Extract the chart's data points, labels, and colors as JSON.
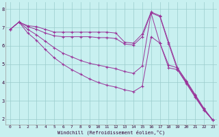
{
  "xlabel": "Windchill (Refroidissement éolien,°C)",
  "background_color": "#c8f0f0",
  "line_color": "#993399",
  "xlim": [
    -0.5,
    23.5
  ],
  "ylim": [
    1.7,
    8.4
  ],
  "yticks": [
    2,
    3,
    4,
    5,
    6,
    7,
    8
  ],
  "xticks": [
    0,
    1,
    2,
    3,
    4,
    5,
    6,
    7,
    8,
    9,
    10,
    11,
    12,
    13,
    14,
    15,
    16,
    17,
    18,
    19,
    20,
    21,
    22,
    23
  ],
  "series": [
    {
      "x": [
        0,
        1,
        2,
        3,
        4,
        5,
        6,
        7,
        8,
        9,
        10,
        11,
        12,
        13,
        14,
        15,
        16,
        17,
        18,
        19,
        20,
        21,
        22,
        23
      ],
      "y": [
        6.9,
        7.3,
        7.1,
        7.05,
        6.9,
        6.75,
        6.75,
        6.75,
        6.75,
        6.75,
        6.75,
        6.75,
        6.7,
        6.2,
        6.15,
        6.65,
        7.85,
        7.65,
        6.2,
        4.8,
        4.1,
        3.35,
        2.6,
        1.95
      ]
    },
    {
      "x": [
        0,
        1,
        2,
        3,
        4,
        5,
        6,
        7,
        8,
        9,
        10,
        11,
        12,
        13,
        14,
        15,
        16,
        17,
        18,
        19,
        20,
        21,
        22,
        23
      ],
      "y": [
        6.9,
        7.3,
        7.05,
        6.9,
        6.7,
        6.55,
        6.5,
        6.5,
        6.5,
        6.5,
        6.45,
        6.45,
        6.4,
        6.1,
        6.05,
        6.5,
        7.8,
        7.6,
        6.1,
        4.7,
        4.0,
        3.25,
        2.5,
        1.95
      ]
    },
    {
      "x": [
        0,
        1,
        2,
        3,
        4,
        5,
        6,
        7,
        8,
        9,
        10,
        11,
        12,
        13,
        14,
        15,
        16,
        17,
        18,
        19,
        20,
        21,
        22,
        23
      ],
      "y": [
        6.9,
        7.3,
        6.9,
        6.6,
        6.25,
        5.9,
        5.6,
        5.4,
        5.2,
        5.05,
        4.95,
        4.85,
        4.75,
        4.6,
        4.5,
        4.9,
        7.8,
        6.15,
        4.95,
        4.8,
        4.05,
        3.3,
        2.55,
        1.95
      ]
    },
    {
      "x": [
        0,
        1,
        2,
        3,
        4,
        5,
        6,
        7,
        8,
        9,
        10,
        11,
        12,
        13,
        14,
        15,
        16,
        17,
        18,
        19,
        20,
        21,
        22,
        23
      ],
      "y": [
        6.9,
        7.3,
        6.7,
        6.3,
        5.8,
        5.35,
        5.0,
        4.7,
        4.45,
        4.2,
        4.0,
        3.85,
        3.75,
        3.6,
        3.5,
        3.8,
        6.5,
        6.15,
        4.8,
        4.7,
        3.95,
        3.2,
        2.5,
        1.95
      ]
    }
  ]
}
